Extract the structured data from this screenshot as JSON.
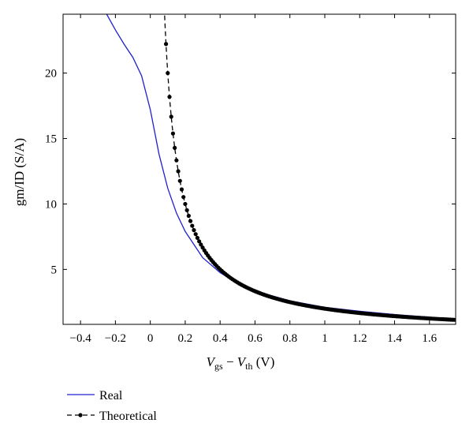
{
  "chart_data": {
    "type": "line",
    "title": "",
    "xlabel": {
      "v": "V",
      "gs": "gs",
      "minus": " − ",
      "v2": "V",
      "th": "th",
      "unit": " (V)"
    },
    "ylabel": "gm/ID (S/A)",
    "xlim": [
      -0.5,
      1.75
    ],
    "ylim": [
      0.8,
      24.5
    ],
    "xticks": [
      -0.4,
      -0.2,
      0,
      0.2,
      0.4,
      0.6,
      0.8,
      1,
      1.2,
      1.4,
      1.6
    ],
    "xtick_labels": [
      "−0.4",
      "−0.2",
      "0",
      "0.2",
      "0.4",
      "0.6",
      "0.8",
      "1",
      "1.2",
      "1.4",
      "1.6"
    ],
    "yticks": [
      5,
      10,
      15,
      20
    ],
    "ytick_labels": [
      "5",
      "10",
      "15",
      "20"
    ],
    "grid": false,
    "legend": "bottom-left, below plot",
    "series": [
      {
        "name": "Real",
        "color": "#2020d0",
        "style": "solid",
        "x": [
          -0.25,
          -0.2,
          -0.15,
          -0.1,
          -0.05,
          0,
          0.05,
          0.1,
          0.15,
          0.2,
          0.3,
          0.4,
          0.5,
          0.6,
          0.8,
          1.0,
          1.2,
          1.4,
          1.6,
          1.75
        ],
        "y": [
          24.5,
          23.3,
          22.2,
          21.2,
          19.8,
          17.2,
          13.8,
          11.2,
          9.3,
          7.9,
          5.9,
          4.75,
          3.95,
          3.35,
          2.6,
          2.1,
          1.8,
          1.55,
          1.35,
          1.2
        ]
      },
      {
        "name": "Theoretical",
        "color": "#000000",
        "style": "dashed",
        "marker": "dot",
        "model": "y = 2 / x",
        "x_start": 0.08,
        "x_end": 1.75,
        "marker_x_start": 0.09,
        "marker_step": 0.01
      }
    ]
  }
}
